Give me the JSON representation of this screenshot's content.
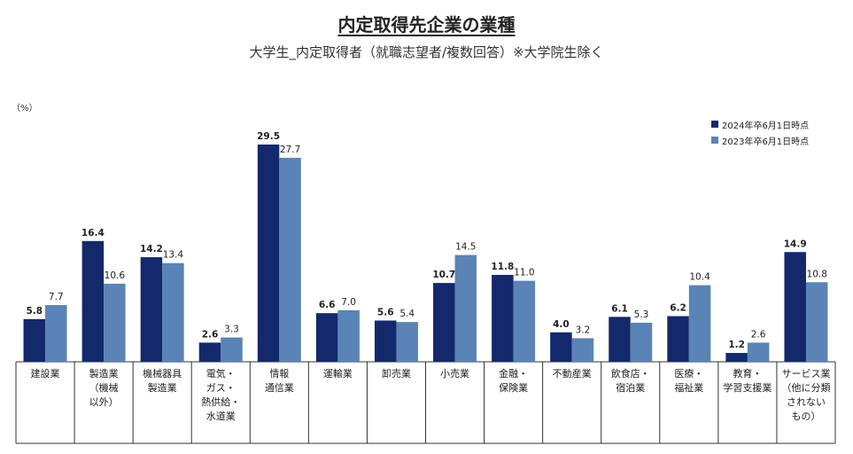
{
  "title": "内定取得先企業の業種",
  "subtitle": "大学生_内定取得者（就職志望者/複数回答）※大学院生除く",
  "unit_label": "（%）",
  "colors": {
    "series_2024": "#13296b",
    "series_2023": "#5a84b5",
    "axis": "#333333",
    "grid": "#666666"
  },
  "chart_data": {
    "type": "bar",
    "ylabel": "（%）",
    "ylim": [
      0,
      30
    ],
    "grid": false,
    "legend_position": "top-right",
    "categories": [
      [
        "建設業"
      ],
      [
        "製造業",
        "（機械",
        "以外）"
      ],
      [
        "機械器具",
        "製造業"
      ],
      [
        "電気・",
        "ガス・",
        "熱供給・",
        "水道業"
      ],
      [
        "情報",
        "通信業"
      ],
      [
        "運輸業"
      ],
      [
        "卸売業"
      ],
      [
        "小売業"
      ],
      [
        "金融・",
        "保険業"
      ],
      [
        "不動産業"
      ],
      [
        "飲食店・",
        "宿泊業"
      ],
      [
        "医療・",
        "福祉業"
      ],
      [
        "教育・",
        "学習支援業"
      ],
      [
        "サービス業",
        "（他に分類",
        "されない",
        "もの）"
      ]
    ],
    "series": [
      {
        "name": "2024年卒6月1日時点",
        "values": [
          5.8,
          16.4,
          14.2,
          2.6,
          29.5,
          6.6,
          5.6,
          10.7,
          11.8,
          4.0,
          6.1,
          6.2,
          1.2,
          14.9
        ]
      },
      {
        "name": "2023年卒6月1日時点",
        "values": [
          7.7,
          10.6,
          13.4,
          3.3,
          27.7,
          7.0,
          5.4,
          14.5,
          11.0,
          3.2,
          5.3,
          10.4,
          2.6,
          10.8
        ]
      }
    ]
  }
}
